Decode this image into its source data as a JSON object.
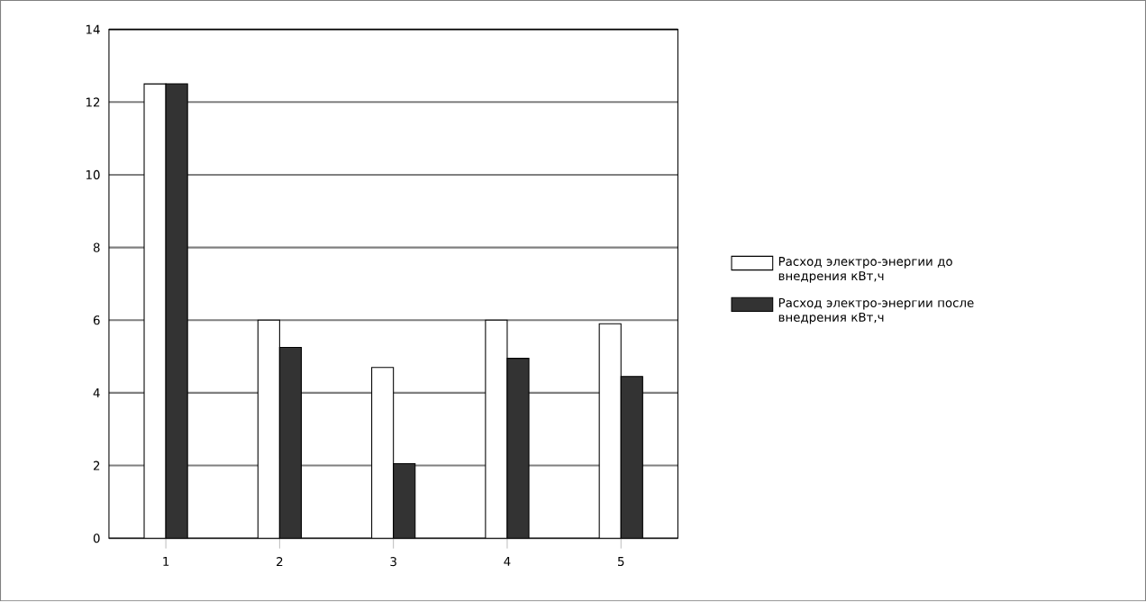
{
  "chart_data": {
    "type": "bar",
    "categories": [
      "1",
      "2",
      "3",
      "4",
      "5"
    ],
    "series": [
      {
        "name": "Расход электро-энергии до внедрения кВт,ч",
        "color": "#ffffff",
        "values": [
          12.5,
          6.0,
          4.7,
          6.0,
          5.9
        ]
      },
      {
        "name": "Расход электро-энергии после внедрения кВт,ч",
        "color": "#333333",
        "values": [
          12.5,
          5.25,
          2.05,
          4.95,
          4.45
        ]
      }
    ],
    "ylim": [
      0,
      14
    ],
    "yticks": [
      0,
      2,
      4,
      6,
      8,
      10,
      12,
      14
    ],
    "grid": "y",
    "legend": "right"
  }
}
